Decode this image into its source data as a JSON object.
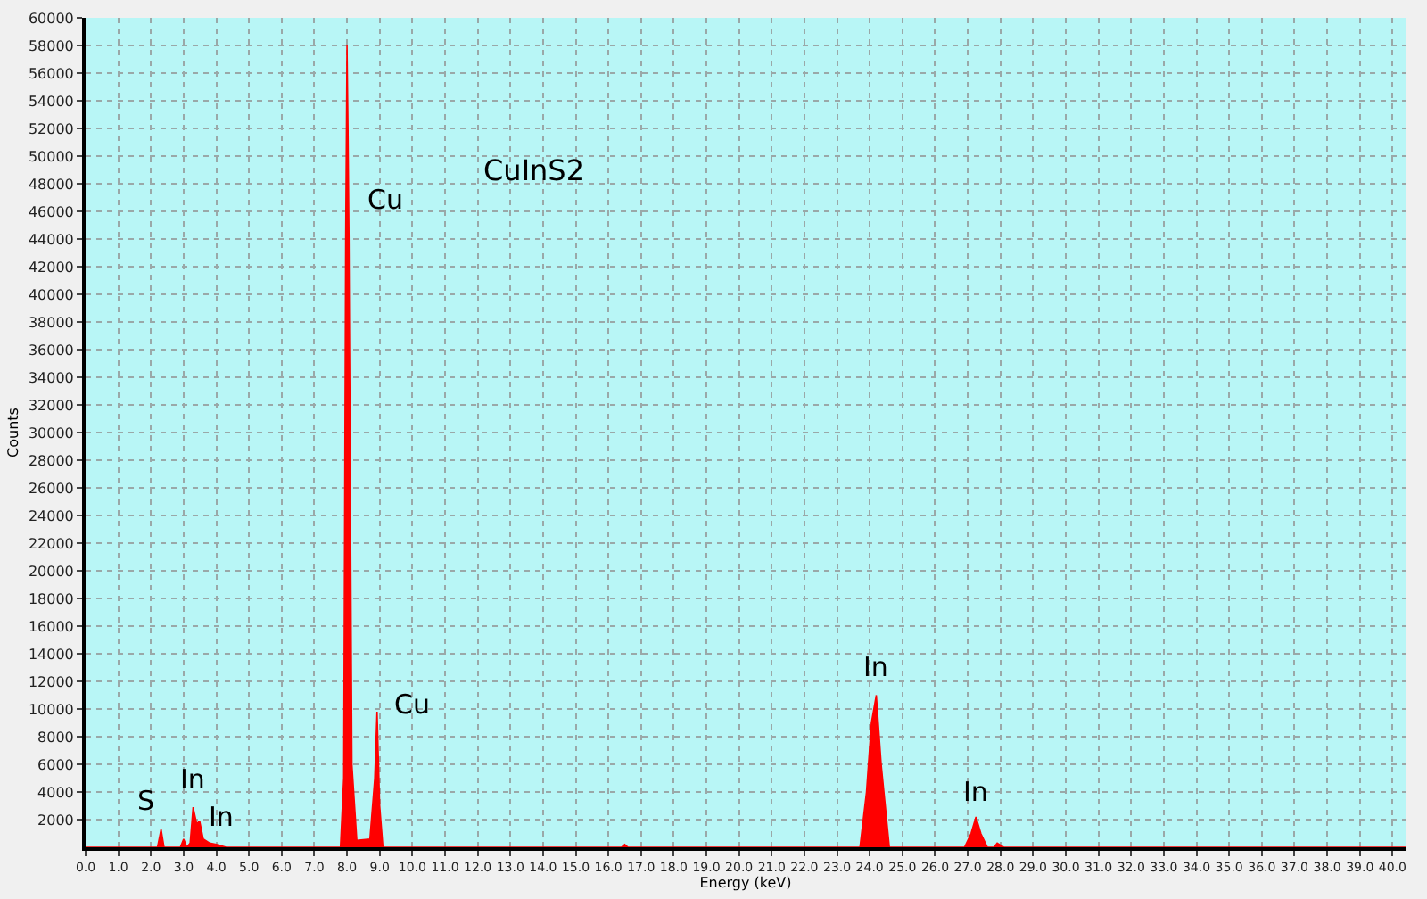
{
  "chart_data": {
    "type": "area",
    "title": "CuInS2",
    "xlabel": "Energy (keV)",
    "ylabel": "Counts",
    "x": [
      0,
      2.0,
      2.2,
      2.31,
      2.4,
      2.9,
      3.0,
      3.1,
      3.2,
      3.29,
      3.4,
      3.49,
      3.6,
      3.8,
      4.0,
      4.3,
      7.8,
      7.9,
      7.96,
      8.0,
      8.03,
      8.06,
      8.15,
      8.3,
      8.7,
      8.85,
      8.92,
      9.0,
      9.1,
      16.4,
      16.5,
      16.6,
      23.7,
      23.9,
      24.05,
      24.2,
      24.35,
      24.6,
      26.9,
      27.1,
      27.25,
      27.4,
      27.6,
      27.8,
      27.9,
      28.1,
      40.4
    ],
    "series": [
      {
        "color": "#ff0000",
        "values": [
          0,
          0,
          0,
          1300,
          0,
          0,
          600,
          0,
          300,
          2900,
          1700,
          1900,
          600,
          300,
          200,
          0,
          0,
          5000,
          44000,
          58000,
          52000,
          44000,
          6000,
          500,
          600,
          5000,
          9800,
          3000,
          0,
          0,
          200,
          0,
          0,
          4000,
          9000,
          11000,
          6000,
          0,
          0,
          1000,
          2200,
          1000,
          0,
          0,
          300,
          0,
          0
        ]
      }
    ],
    "annotations": [
      {
        "text": "Cu",
        "x": 8.06,
        "y": 44000
      },
      {
        "text": "Cu",
        "x": 8.92,
        "y": 9800
      },
      {
        "text": "S",
        "x": 2.31,
        "y": 1300
      },
      {
        "text": "In",
        "x": 3.29,
        "y": 2900
      },
      {
        "text": "In",
        "x": 3.49,
        "y": 1900
      },
      {
        "text": "In",
        "x": 24.2,
        "y": 11000
      },
      {
        "text": "In",
        "x": 27.25,
        "y": 2200
      }
    ],
    "xlim": [
      0,
      40.4
    ],
    "ylim": [
      0,
      60000
    ],
    "xticks": [
      {
        "value": 0,
        "label": "0.0"
      },
      {
        "value": 1,
        "label": "1.0"
      },
      {
        "value": 2,
        "label": "2.0"
      },
      {
        "value": 3,
        "label": "3.0"
      },
      {
        "value": 4,
        "label": "4.0"
      },
      {
        "value": 5,
        "label": "5.0"
      },
      {
        "value": 6,
        "label": "6.0"
      },
      {
        "value": 7,
        "label": "7.0"
      },
      {
        "value": 8,
        "label": "8.0"
      },
      {
        "value": 9,
        "label": "9.0"
      },
      {
        "value": 10,
        "label": "10.0"
      },
      {
        "value": 11,
        "label": "11.0"
      },
      {
        "value": 12,
        "label": "12.0"
      },
      {
        "value": 13,
        "label": "13.0"
      },
      {
        "value": 14,
        "label": "14.0"
      },
      {
        "value": 15,
        "label": "15.0"
      },
      {
        "value": 16,
        "label": "16.0"
      },
      {
        "value": 17,
        "label": "17.0"
      },
      {
        "value": 18,
        "label": "18.0"
      },
      {
        "value": 19,
        "label": "19.0"
      },
      {
        "value": 20,
        "label": "20.0"
      },
      {
        "value": 21,
        "label": "21.0"
      },
      {
        "value": 22,
        "label": "22.0"
      },
      {
        "value": 23,
        "label": "23.0"
      },
      {
        "value": 24,
        "label": "24.0"
      },
      {
        "value": 25,
        "label": "25.0"
      },
      {
        "value": 26,
        "label": "26.0"
      },
      {
        "value": 27,
        "label": "27.0"
      },
      {
        "value": 28,
        "label": "28.0"
      },
      {
        "value": 29,
        "label": "29.0"
      },
      {
        "value": 30,
        "label": "30.0"
      },
      {
        "value": 31,
        "label": "31.0"
      },
      {
        "value": 32,
        "label": "32.0"
      },
      {
        "value": 33,
        "label": "33.0"
      },
      {
        "value": 34,
        "label": "34.0"
      },
      {
        "value": 35,
        "label": "35.0"
      },
      {
        "value": 36,
        "label": "36.0"
      },
      {
        "value": 37,
        "label": "37.0"
      },
      {
        "value": 38,
        "label": "38.0"
      },
      {
        "value": 39,
        "label": "39.0"
      },
      {
        "value": 40,
        "label": "40.0"
      }
    ],
    "yticks": [
      2000,
      4000,
      6000,
      8000,
      10000,
      12000,
      14000,
      16000,
      18000,
      20000,
      22000,
      24000,
      26000,
      28000,
      30000,
      32000,
      34000,
      36000,
      38000,
      40000,
      42000,
      44000,
      46000,
      48000,
      50000,
      52000,
      54000,
      56000,
      58000,
      60000
    ],
    "grid": true
  }
}
